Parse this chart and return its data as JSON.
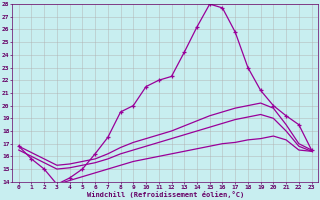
{
  "xlabel": "Windchill (Refroidissement éolien,°C)",
  "background_color": "#c8eef0",
  "line_color": "#990099",
  "xlim": [
    -0.5,
    23.5
  ],
  "ylim": [
    14,
    28
  ],
  "xticks": [
    0,
    1,
    2,
    3,
    4,
    5,
    6,
    7,
    8,
    9,
    10,
    11,
    12,
    13,
    14,
    15,
    16,
    17,
    18,
    19,
    20,
    21,
    22,
    23
  ],
  "yticks": [
    14,
    15,
    16,
    17,
    18,
    19,
    20,
    21,
    22,
    23,
    24,
    25,
    26,
    27,
    28
  ],
  "line1_x": [
    0,
    1,
    2,
    3,
    4,
    5,
    6,
    7,
    8,
    9,
    10,
    11,
    12,
    13,
    14,
    15,
    16,
    17,
    18,
    19,
    20,
    21,
    22,
    23
  ],
  "line1_y": [
    16.8,
    15.8,
    15.0,
    13.8,
    14.3,
    15.0,
    16.2,
    17.5,
    19.5,
    20.0,
    21.5,
    22.0,
    22.3,
    24.2,
    26.2,
    28.0,
    27.7,
    25.8,
    23.0,
    21.2,
    20.0,
    19.2,
    18.5,
    16.5
  ],
  "line2_x": [
    0,
    1,
    2,
    3,
    4,
    5,
    6,
    7,
    8,
    9,
    10,
    11,
    12,
    13,
    14,
    15,
    16,
    17,
    18,
    19,
    20,
    21,
    22,
    23
  ],
  "line2_y": [
    16.8,
    16.3,
    15.8,
    15.3,
    15.4,
    15.6,
    15.8,
    16.2,
    16.7,
    17.1,
    17.4,
    17.7,
    18.0,
    18.4,
    18.8,
    19.2,
    19.5,
    19.8,
    20.0,
    20.2,
    19.8,
    18.5,
    17.0,
    16.5
  ],
  "line3_x": [
    0,
    1,
    2,
    3,
    4,
    5,
    6,
    7,
    8,
    9,
    10,
    11,
    12,
    13,
    14,
    15,
    16,
    17,
    18,
    19,
    20,
    21,
    22,
    23
  ],
  "line3_y": [
    16.5,
    16.0,
    15.5,
    15.0,
    15.1,
    15.3,
    15.5,
    15.8,
    16.2,
    16.5,
    16.8,
    17.1,
    17.4,
    17.7,
    18.0,
    18.3,
    18.6,
    18.9,
    19.1,
    19.3,
    19.0,
    18.0,
    16.8,
    16.4
  ],
  "line4_x": [
    3,
    4,
    5,
    6,
    7,
    8,
    9,
    10,
    11,
    12,
    13,
    14,
    15,
    16,
    17,
    18,
    19,
    20,
    21,
    22,
    23
  ],
  "line4_y": [
    13.8,
    14.1,
    14.4,
    14.7,
    15.0,
    15.3,
    15.6,
    15.8,
    16.0,
    16.2,
    16.4,
    16.6,
    16.8,
    17.0,
    17.1,
    17.3,
    17.4,
    17.6,
    17.3,
    16.5,
    16.4
  ],
  "font_color": "#660066",
  "grid_color": "#b0b0b0"
}
